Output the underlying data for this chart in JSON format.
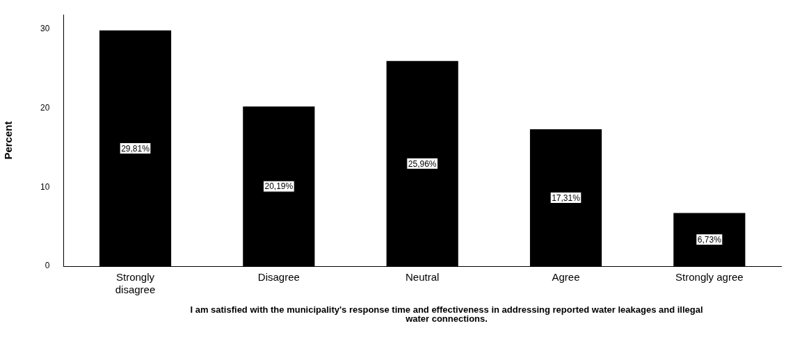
{
  "chart_data": {
    "type": "bar",
    "ylabel": "Percent",
    "xlabel": "I am satisfied with the municipality's response time and effectiveness in addressing reported water leakages and illegal water connections.",
    "categories": [
      "Strongly disagree",
      "Disagree",
      "Neutral",
      "Agree",
      "Strongly agree"
    ],
    "values": [
      29.81,
      20.19,
      25.96,
      17.31,
      6.73
    ],
    "value_labels": [
      "29,81%",
      "20,19%",
      "25,96%",
      "17,31%",
      "6,73%"
    ],
    "color": "#000000",
    "ylim": [
      0,
      31.8
    ],
    "yticks": [
      0,
      10,
      20,
      30
    ],
    "grid": false,
    "legend": false
  }
}
